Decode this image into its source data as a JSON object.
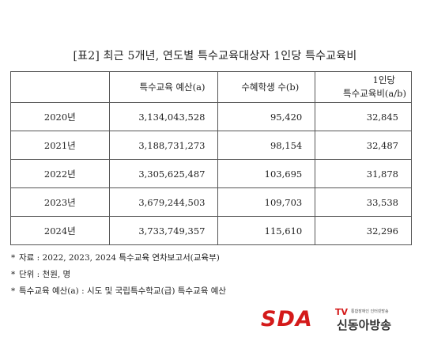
{
  "title": "[표2] 최근 5개년, 연도별 특수교육대상자 1인당 특수교육비",
  "table": {
    "headers": [
      "",
      "특수교육 예산(a)",
      "수혜학생 수(b)",
      "1인당",
      "특수교육비(a/b)"
    ],
    "rows": [
      {
        "year": "2020년",
        "budget": "3,134,043,528",
        "students": "95,420",
        "per": "32,845"
      },
      {
        "year": "2021년",
        "budget": "3,188,731,273",
        "students": "98,154",
        "per": "32,487"
      },
      {
        "year": "2022년",
        "budget": "3,305,625,487",
        "students": "103,695",
        "per": "31,878"
      },
      {
        "year": "2023년",
        "budget": "3,679,244,503",
        "students": "109,703",
        "per": "33,538"
      },
      {
        "year": "2024년",
        "budget": "3,733,749,357",
        "students": "115,610",
        "per": "32,296"
      }
    ]
  },
  "notes": [
    {
      "star": "*",
      "text": "자료 : 2022, 2023, 2024 특수교육 연차보고서(교육부)"
    },
    {
      "star": "*",
      "text": "단위 : 천원, 명"
    },
    {
      "star": "*",
      "text": "특수교육 예산(a) : 시도 및 국립특수학교(급) 특수교육 예산"
    }
  ],
  "logo": {
    "mark": "SDA",
    "tv": "TV",
    "subtitle": "통합장애인 인터넷방송",
    "name": "신동아방송",
    "color": "#d41a1a"
  }
}
